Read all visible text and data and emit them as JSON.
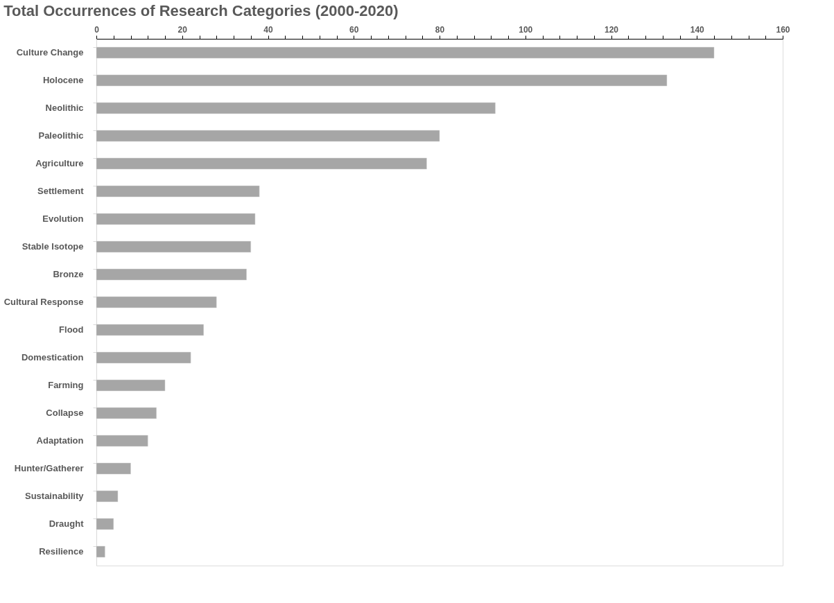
{
  "chart_data": {
    "type": "bar",
    "orientation": "horizontal",
    "title": "Total Occurrences of Research Categories (2000-2020)",
    "categories": [
      "Culture Change",
      "Holocene",
      "Neolithic",
      "Paleolithic",
      "Agriculture",
      "Settlement",
      "Evolution",
      "Stable Isotope",
      "Bronze",
      "Cultural Response",
      "Flood",
      "Domestication",
      "Farming",
      "Collapse",
      "Adaptation",
      "Hunter/Gatherer",
      "Sustainability",
      "Draught",
      "Resilience"
    ],
    "values": [
      144,
      133,
      93,
      80,
      77,
      38,
      37,
      36,
      35,
      28,
      25,
      22,
      16,
      14,
      12,
      8,
      5,
      4,
      2
    ],
    "color": "#a6a6a6",
    "xlim": [
      0,
      160
    ],
    "xticks": [
      0,
      {
        "value": 4,
        "label": null
      },
      {
        "value": 8,
        "label": null
      },
      {
        "value": 12,
        "label": null
      },
      {
        "value": 16,
        "label": null
      },
      20,
      {
        "value": 24,
        "label": null
      },
      {
        "value": 28,
        "label": null
      },
      {
        "value": 32,
        "label": null
      },
      {
        "value": 36,
        "label": null
      },
      40,
      {
        "value": 44,
        "label": null
      },
      {
        "value": 48,
        "label": null
      },
      {
        "value": 52,
        "label": null
      },
      {
        "value": 56,
        "label": null
      },
      60,
      {
        "value": 64,
        "label": null
      },
      {
        "value": 68,
        "label": null
      },
      {
        "value": 72,
        "label": null
      },
      {
        "value": 76,
        "label": null
      },
      80,
      {
        "value": 84,
        "label": null
      },
      {
        "value": 88,
        "label": null
      },
      {
        "value": 92,
        "label": null
      },
      {
        "value": 96,
        "label": null
      },
      100,
      {
        "value": 104,
        "label": null
      },
      {
        "value": 108,
        "label": null
      },
      {
        "value": 112,
        "label": null
      },
      {
        "value": 116,
        "label": null
      },
      120,
      {
        "value": 124,
        "label": null
      },
      {
        "value": 128,
        "label": null
      },
      {
        "value": 132,
        "label": null
      },
      {
        "value": 136,
        "label": null
      },
      140,
      {
        "value": 144,
        "label": null
      },
      {
        "value": 148,
        "label": null
      },
      {
        "value": 152,
        "label": null
      },
      {
        "value": 156,
        "label": null
      },
      160
    ],
    "grid": false
  }
}
